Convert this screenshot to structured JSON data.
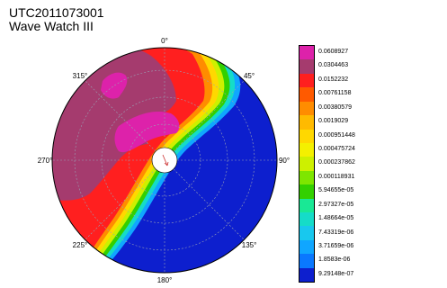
{
  "header": {
    "title_line1": "UTC2011073001",
    "title_line2": "Wave Watch III"
  },
  "chart_data": {
    "type": "polar-contour",
    "title": "UTC2011073001",
    "subtitle": "Wave Watch III",
    "angle_labels": [
      {
        "angle": 0,
        "text": "0°"
      },
      {
        "angle": 45,
        "text": "45°"
      },
      {
        "angle": 90,
        "text": "90°"
      },
      {
        "angle": 135,
        "text": "135°"
      },
      {
        "angle": 180,
        "text": "180°"
      },
      {
        "angle": 225,
        "text": "225°"
      },
      {
        "angle": 270,
        "text": "270°"
      },
      {
        "angle": 315,
        "text": "315°"
      }
    ],
    "grid": true,
    "legend_position": "right",
    "colorbar": {
      "levels": [
        "0.0608927",
        "0.0304463",
        "0.0152232",
        "0.00761158",
        "0.00380579",
        "0.0019029",
        "0.000951448",
        "0.000475724",
        "0.000237862",
        "0.000118931",
        "5.94655e-05",
        "2.97327e-05",
        "1.48664e-05",
        "7.43319e-06",
        "3.71659e-06",
        "1.8583e-06",
        "9.29148e-07"
      ],
      "colors": [
        "#dd22aa",
        "#a53b6e",
        "#ff1f1f",
        "#ff5a00",
        "#ff8c00",
        "#ffba00",
        "#ffd800",
        "#f4f000",
        "#cdf000",
        "#7ee600",
        "#33d000",
        "#19e895",
        "#15dcc8",
        "#18c8ee",
        "#10a6ff",
        "#0a78ff",
        "#0d1fce"
      ]
    }
  }
}
